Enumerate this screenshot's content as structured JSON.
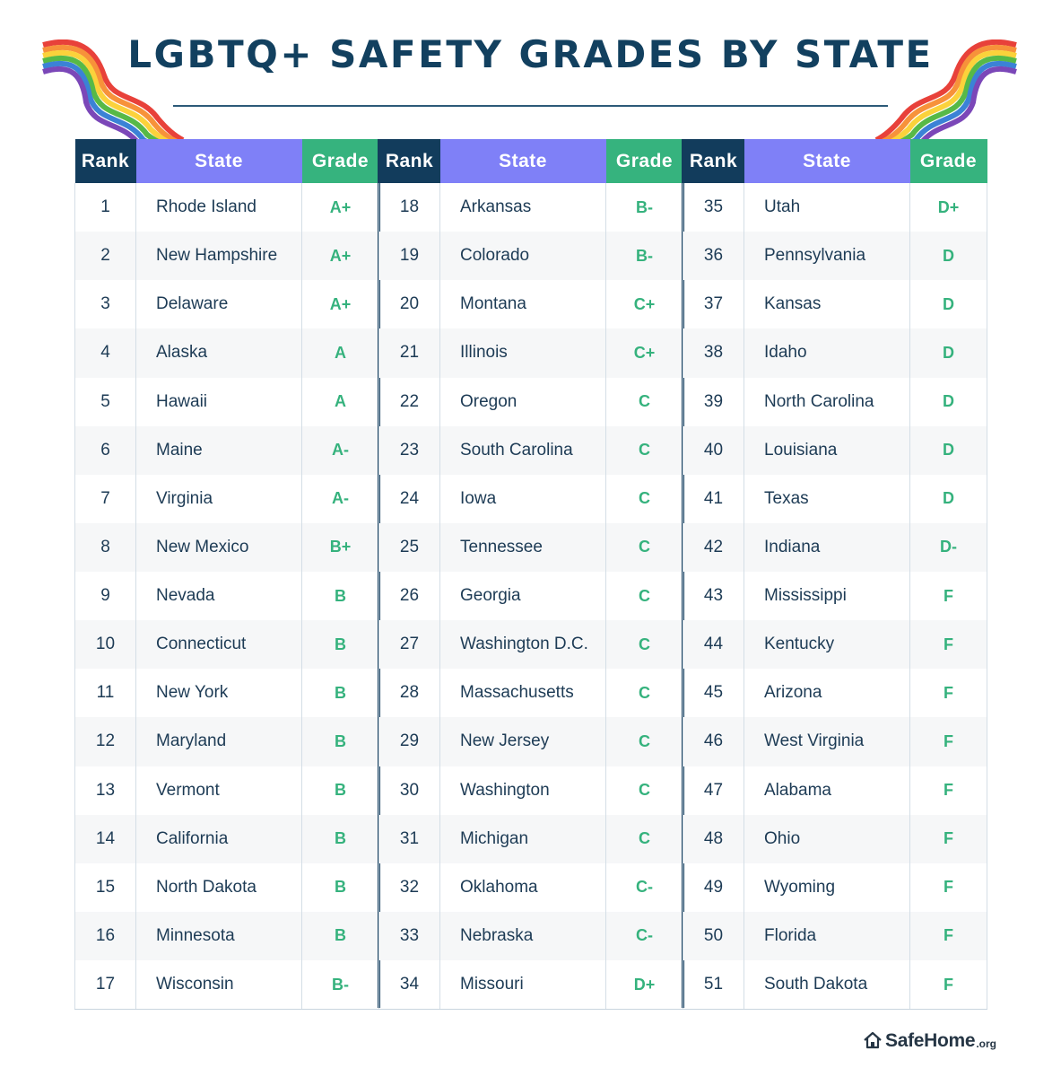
{
  "title": "LGBTQ+ SAFETY GRADES BY STATE",
  "headers": {
    "rank": "Rank",
    "state": "State",
    "grade": "Grade"
  },
  "colors": {
    "title": "#12405f",
    "rank_header": "#123c5c",
    "state_header": "#7f80f7",
    "grade_header": "#36b37e",
    "grade_text": "#35b27d"
  },
  "tables": [
    {
      "rows": [
        {
          "rank": "1",
          "state": "Rhode Island",
          "grade": "A+"
        },
        {
          "rank": "2",
          "state": "New Hampshire",
          "grade": "A+"
        },
        {
          "rank": "3",
          "state": "Delaware",
          "grade": "A+"
        },
        {
          "rank": "4",
          "state": "Alaska",
          "grade": "A"
        },
        {
          "rank": "5",
          "state": "Hawaii",
          "grade": "A"
        },
        {
          "rank": "6",
          "state": "Maine",
          "grade": "A-"
        },
        {
          "rank": "7",
          "state": "Virginia",
          "grade": "A-"
        },
        {
          "rank": "8",
          "state": "New Mexico",
          "grade": "B+"
        },
        {
          "rank": "9",
          "state": "Nevada",
          "grade": "B"
        },
        {
          "rank": "10",
          "state": "Connecticut",
          "grade": "B"
        },
        {
          "rank": "11",
          "state": "New York",
          "grade": "B"
        },
        {
          "rank": "12",
          "state": "Maryland",
          "grade": "B"
        },
        {
          "rank": "13",
          "state": "Vermont",
          "grade": "B"
        },
        {
          "rank": "14",
          "state": "California",
          "grade": "B"
        },
        {
          "rank": "15",
          "state": "North Dakota",
          "grade": "B"
        },
        {
          "rank": "16",
          "state": "Minnesota",
          "grade": "B"
        },
        {
          "rank": "17",
          "state": "Wisconsin",
          "grade": "B-"
        }
      ]
    },
    {
      "rows": [
        {
          "rank": "18",
          "state": "Arkansas",
          "grade": "B-"
        },
        {
          "rank": "19",
          "state": "Colorado",
          "grade": "B-"
        },
        {
          "rank": "20",
          "state": "Montana",
          "grade": "C+"
        },
        {
          "rank": "21",
          "state": "Illinois",
          "grade": "C+"
        },
        {
          "rank": "22",
          "state": "Oregon",
          "grade": "C"
        },
        {
          "rank": "23",
          "state": "South Carolina",
          "grade": "C"
        },
        {
          "rank": "24",
          "state": "Iowa",
          "grade": "C"
        },
        {
          "rank": "25",
          "state": "Tennessee",
          "grade": "C"
        },
        {
          "rank": "26",
          "state": "Georgia",
          "grade": "C"
        },
        {
          "rank": "27",
          "state": "Washington D.C.",
          "grade": "C"
        },
        {
          "rank": "28",
          "state": "Massachusetts",
          "grade": "C"
        },
        {
          "rank": "29",
          "state": "New Jersey",
          "grade": "C"
        },
        {
          "rank": "30",
          "state": "Washington",
          "grade": "C"
        },
        {
          "rank": "31",
          "state": "Michigan",
          "grade": "C"
        },
        {
          "rank": "32",
          "state": "Oklahoma",
          "grade": "C-"
        },
        {
          "rank": "33",
          "state": "Nebraska",
          "grade": "C-"
        },
        {
          "rank": "34",
          "state": "Missouri",
          "grade": "D+"
        }
      ]
    },
    {
      "rows": [
        {
          "rank": "35",
          "state": "Utah",
          "grade": "D+"
        },
        {
          "rank": "36",
          "state": "Pennsylvania",
          "grade": "D"
        },
        {
          "rank": "37",
          "state": "Kansas",
          "grade": "D"
        },
        {
          "rank": "38",
          "state": "Idaho",
          "grade": "D"
        },
        {
          "rank": "39",
          "state": "North Carolina",
          "grade": "D"
        },
        {
          "rank": "40",
          "state": "Louisiana",
          "grade": "D"
        },
        {
          "rank": "41",
          "state": "Texas",
          "grade": "D"
        },
        {
          "rank": "42",
          "state": "Indiana",
          "grade": "D-"
        },
        {
          "rank": "43",
          "state": "Mississippi",
          "grade": "F"
        },
        {
          "rank": "44",
          "state": "Kentucky",
          "grade": "F"
        },
        {
          "rank": "45",
          "state": "Arizona",
          "grade": "F"
        },
        {
          "rank": "46",
          "state": "West Virginia",
          "grade": "F"
        },
        {
          "rank": "47",
          "state": "Alabama",
          "grade": "F"
        },
        {
          "rank": "48",
          "state": "Ohio",
          "grade": "F"
        },
        {
          "rank": "49",
          "state": "Wyoming",
          "grade": "F"
        },
        {
          "rank": "50",
          "state": "Florida",
          "grade": "F"
        },
        {
          "rank": "51",
          "state": "South Dakota",
          "grade": "F"
        }
      ]
    }
  ],
  "logo": {
    "main": "SafeHome",
    "tld": ".org",
    "icon": "house-icon"
  },
  "decorations": {
    "left": "rainbow-flag-icon",
    "right": "rainbow-flag-icon"
  }
}
